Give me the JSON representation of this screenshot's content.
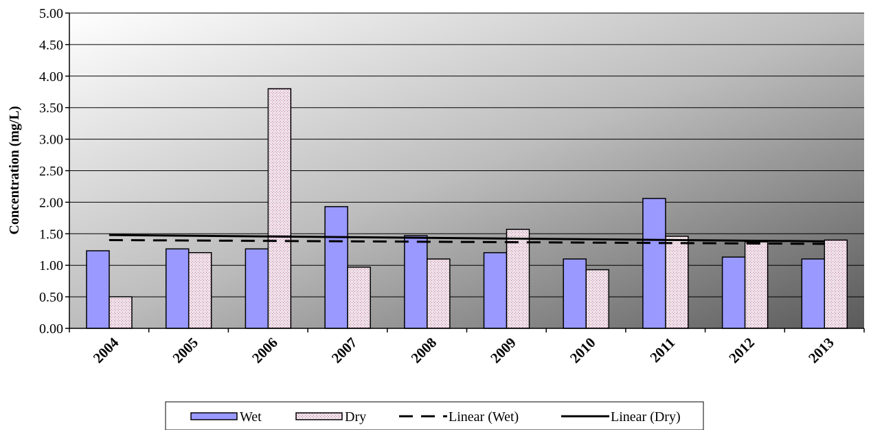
{
  "chart_data": {
    "type": "bar",
    "categories": [
      "2004",
      "2005",
      "2006",
      "2007",
      "2008",
      "2009",
      "2010",
      "2011",
      "2012",
      "2013"
    ],
    "series": [
      {
        "name": "Wet",
        "values": [
          1.23,
          1.26,
          1.26,
          1.93,
          1.47,
          1.2,
          1.1,
          2.06,
          1.13,
          1.1
        ],
        "color": "#9999ff"
      },
      {
        "name": "Dry",
        "values": [
          0.5,
          1.2,
          3.8,
          0.97,
          1.1,
          1.57,
          0.93,
          1.46,
          1.37,
          1.4
        ],
        "color": "#993366"
      }
    ],
    "trendlines": [
      {
        "name": "Linear (Wet)",
        "start": 1.4,
        "end": 1.34,
        "style": "dashed"
      },
      {
        "name": "Linear (Dry)",
        "start": 1.48,
        "end": 1.38,
        "style": "solid"
      }
    ],
    "xlabel": "",
    "ylabel": "Concentration (mg/L)",
    "ylim": [
      0,
      5
    ],
    "yticks": [
      "0.00",
      "0.50",
      "1.00",
      "1.50",
      "2.00",
      "2.50",
      "3.00",
      "3.50",
      "4.00",
      "4.50",
      "5.00"
    ],
    "grid": true,
    "legend_position": "bottom"
  }
}
